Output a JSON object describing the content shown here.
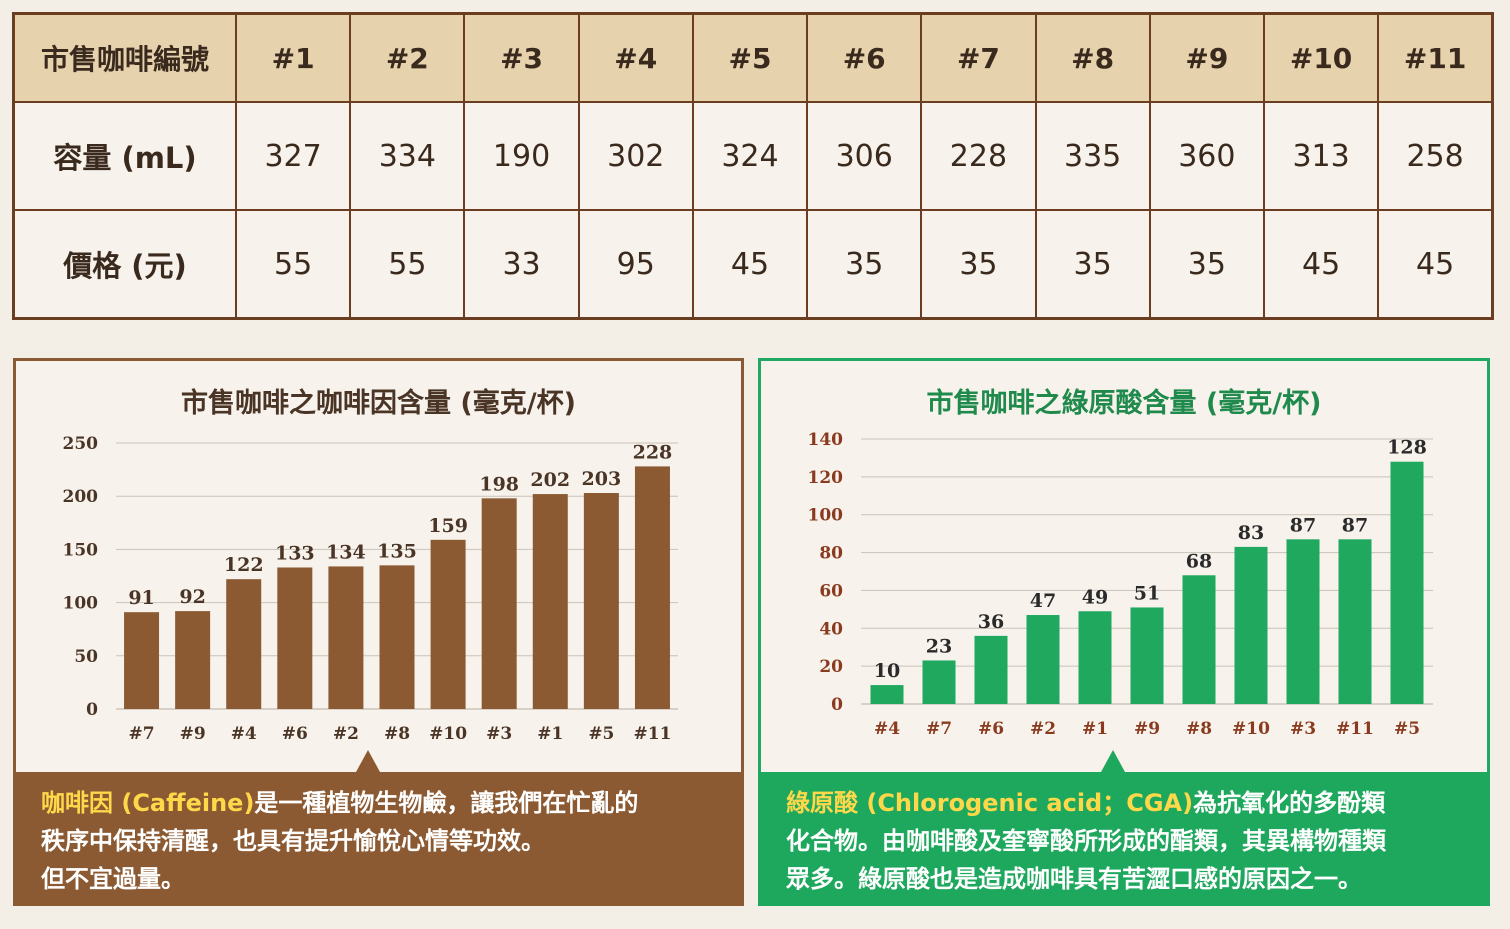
{
  "table": {
    "header": [
      "市售咖啡編號",
      "#1",
      "#2",
      "#3",
      "#4",
      "#5",
      "#6",
      "#7",
      "#8",
      "#9",
      "#10",
      "#11"
    ],
    "rows": [
      {
        "label": "容量 (mL)",
        "values": [
          "327",
          "334",
          "190",
          "302",
          "324",
          "306",
          "228",
          "335",
          "360",
          "313",
          "258"
        ]
      },
      {
        "label": "價格 (元)",
        "values": [
          "55",
          "55",
          "33",
          "95",
          "45",
          "35",
          "35",
          "35",
          "35",
          "45",
          "45"
        ]
      }
    ]
  },
  "chart_data": [
    {
      "type": "bar",
      "title": "市售咖啡之咖啡因含量 (毫克/杯)",
      "categories": [
        "#7",
        "#9",
        "#4",
        "#6",
        "#2",
        "#8",
        "#10",
        "#3",
        "#1",
        "#5",
        "#11"
      ],
      "values": [
        91,
        92,
        122,
        133,
        134,
        135,
        159,
        198,
        202,
        203,
        228
      ],
      "ylim": [
        0,
        250
      ],
      "yticks": [
        "0",
        "50",
        "100",
        "150",
        "200",
        "250"
      ],
      "grid": true,
      "color": "#8b5a32"
    },
    {
      "type": "bar",
      "title": "市售咖啡之綠原酸含量 (毫克/杯)",
      "categories": [
        "#4",
        "#7",
        "#6",
        "#2",
        "#1",
        "#9",
        "#8",
        "#10",
        "#3",
        "#11",
        "#5"
      ],
      "values": [
        10,
        23,
        36,
        47,
        49,
        51,
        68,
        83,
        87,
        87,
        128
      ],
      "ylim": [
        0,
        140
      ],
      "yticks": [
        "0",
        "20",
        "40",
        "60",
        "80",
        "100",
        "120",
        "140"
      ],
      "grid": true,
      "color": "#1fa85e"
    }
  ],
  "captions": {
    "caffeine": {
      "term": "咖啡因 (Caffeine)",
      "line1_rest": "是一種植物生物鹼，讓我們在忙亂的",
      "line2": "秩序中保持清醒，也具有提升愉悅心情等功效。",
      "line3": "但不宜過量。"
    },
    "cga": {
      "term": "綠原酸 (Chlorogenic acid；CGA)",
      "line1_rest": "為抗氧化的多酚類",
      "line2": "化合物。由咖啡酸及奎寧酸所形成的酯類，其異構物種類",
      "line3": "眾多。綠原酸也是造成咖啡具有苦澀口感的原因之一。"
    }
  }
}
